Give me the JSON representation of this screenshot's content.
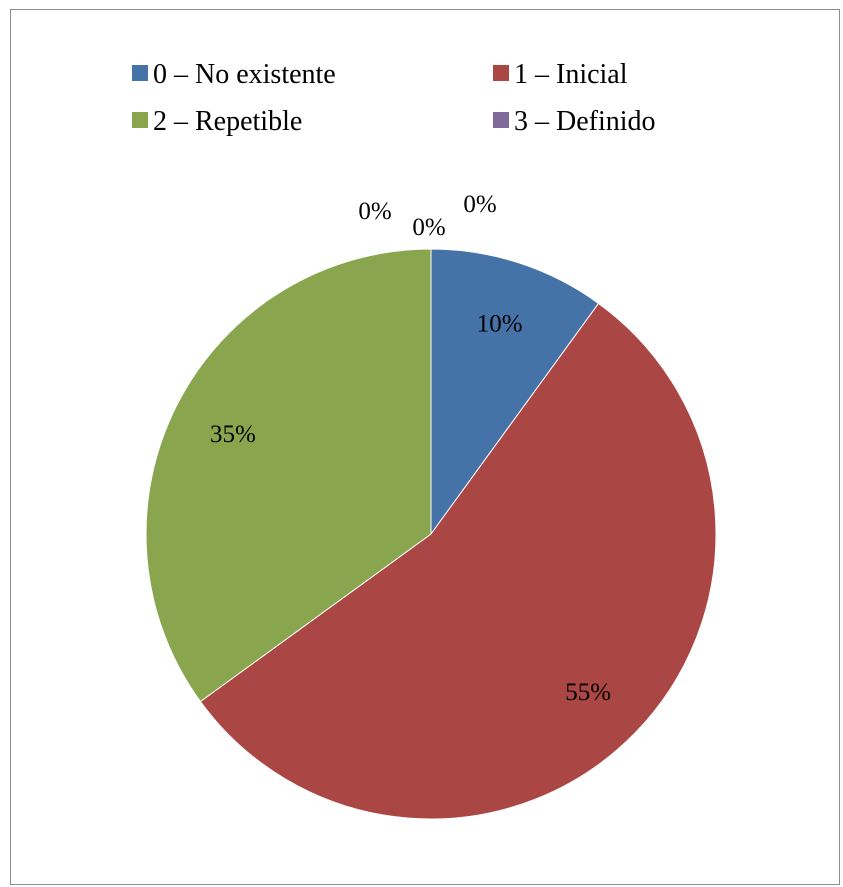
{
  "chart_data": {
    "type": "pie",
    "title": "",
    "categories": [
      "0 – No existente",
      "1 – Inicial",
      "2 – Repetible",
      "3 – Definido"
    ],
    "values": [
      10,
      55,
      35,
      0
    ],
    "labels": [
      "10%",
      "55%",
      "35%",
      "0%"
    ],
    "extra_zero_labels": [
      "0%",
      "0%"
    ],
    "colors": [
      "#4572a7",
      "#aa4643",
      "#89a54e",
      "#80699b"
    ],
    "legend": "top"
  }
}
